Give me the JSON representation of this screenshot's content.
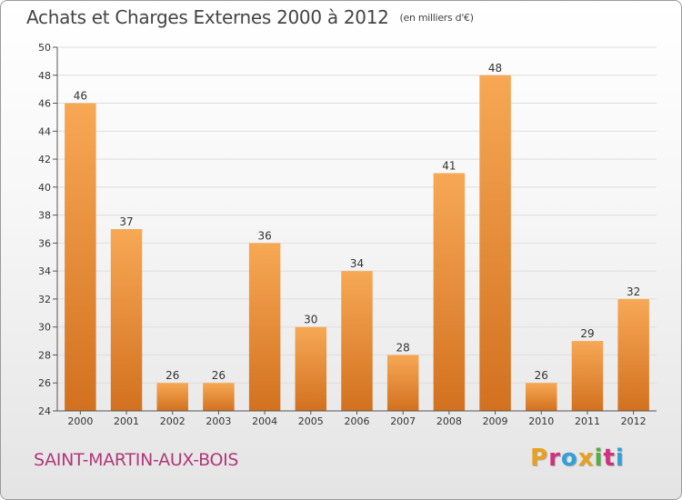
{
  "header": {
    "title": "Achats et Charges Externes 2000 à 2012",
    "unit": "(en milliers d'€)"
  },
  "footer": {
    "city": "SAINT-MARTIN-AUX-BOIS",
    "logo": "Proxiti",
    "logo_colors": [
      "#e8a020",
      "#d03080",
      "#30a0d8",
      "#e8a020",
      "#50b040",
      "#d03080",
      "#30a0d8"
    ]
  },
  "colors": {
    "bar_light": "#f7a855",
    "bar_dark": "#d2711f",
    "grid": "#dddddd",
    "axis_text": "#333333",
    "city": "#b03878"
  },
  "chart_data": {
    "type": "bar",
    "title": "Achats et Charges Externes 2000 à 2012",
    "subtitle": "(en milliers d'€)",
    "categories": [
      "2000",
      "2001",
      "2002",
      "2003",
      "2004",
      "2005",
      "2006",
      "2007",
      "2008",
      "2009",
      "2010",
      "2011",
      "2012"
    ],
    "values": [
      46,
      37,
      26,
      26,
      36,
      30,
      34,
      28,
      41,
      48,
      26,
      29,
      32
    ],
    "ylim": [
      24,
      50
    ],
    "yticks": [
      24,
      26,
      28,
      30,
      32,
      34,
      36,
      38,
      40,
      42,
      44,
      46,
      48,
      50
    ],
    "grid": true,
    "data_labels": true
  }
}
